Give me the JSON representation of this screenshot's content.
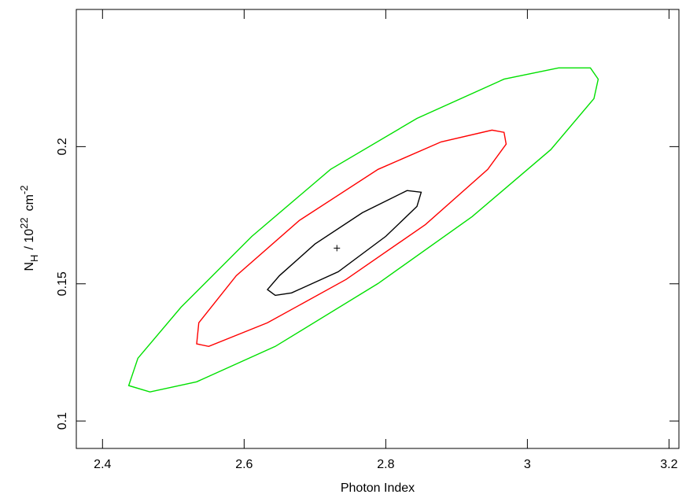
{
  "chart_data": {
    "type": "contour",
    "xlabel": "Photon Index",
    "ylabel_parts": [
      "N",
      "H",
      "/ 10",
      "22",
      "cm",
      "-2"
    ],
    "xlim": [
      2.363,
      3.214
    ],
    "xticks": [
      2.4,
      2.6,
      2.8,
      3,
      3.2
    ],
    "ylim": [
      0.09,
      0.25
    ],
    "yticks": [
      0.1,
      0.15,
      0.2
    ],
    "best_fit": {
      "x": 2.731,
      "y": 0.163
    },
    "series": [
      {
        "color": "#00e000",
        "x": [
          2.437,
          2.45,
          2.511,
          2.611,
          2.722,
          2.844,
          2.967,
          3.044,
          3.089,
          3.1,
          3.094,
          3.033,
          2.922,
          2.789,
          2.644,
          2.533,
          2.467
        ],
        "y": [
          0.1129,
          0.1229,
          0.1415,
          0.1673,
          0.1917,
          0.2103,
          0.2246,
          0.2287,
          0.2287,
          0.2246,
          0.2175,
          0.1989,
          0.1745,
          0.1501,
          0.1272,
          0.1143,
          0.1106
        ]
      },
      {
        "color": "#ff0000",
        "x": [
          2.533,
          2.536,
          2.589,
          2.678,
          2.789,
          2.878,
          2.95,
          2.967,
          2.97,
          2.944,
          2.856,
          2.744,
          2.633,
          2.55
        ],
        "y": [
          0.1281,
          0.1358,
          0.153,
          0.1731,
          0.1917,
          0.2017,
          0.206,
          0.2052,
          0.2009,
          0.1917,
          0.1716,
          0.1516,
          0.1358,
          0.1272
        ]
      },
      {
        "color": "#000000",
        "x": [
          2.633,
          2.65,
          2.7,
          2.767,
          2.83,
          2.85,
          2.844,
          2.8,
          2.733,
          2.667,
          2.644
        ],
        "y": [
          0.1479,
          0.153,
          0.1645,
          0.1759,
          0.184,
          0.1834,
          0.1782,
          0.1673,
          0.1544,
          0.1467,
          0.1458
        ]
      }
    ]
  }
}
